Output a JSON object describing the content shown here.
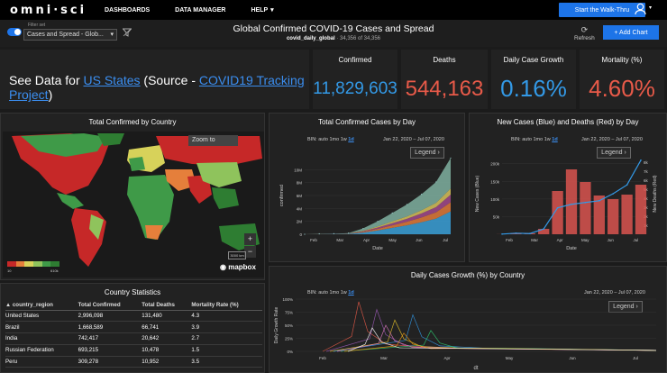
{
  "topbar": {
    "logo": "omni·sci",
    "nav": [
      {
        "label": "DASHBOARDS"
      },
      {
        "label": "DATA MANAGER"
      },
      {
        "label": "HELP"
      }
    ],
    "help_caret": "▾",
    "walkthru": "Start the Walk-Thru",
    "user_icon": "user-icon"
  },
  "subbar": {
    "filter_label": "Filter set",
    "filter_value": "Cases and Spread - Glob...",
    "title": "Global Confirmed COVID-19 Cases and Spread",
    "table_name": "covid_daily_global",
    "row_count": "· 34,356 of 34,356",
    "refresh": "Refresh",
    "add_chart": "+ Add Chart"
  },
  "seedata": {
    "prefix": "See Data for ",
    "link1": "US States",
    "middle": " (Source - ",
    "link2": "COVID19 Tracking Project",
    "suffix": ")"
  },
  "kpis": [
    {
      "label": "Confirmed",
      "value": "11,829,603",
      "color": "#3399e6"
    },
    {
      "label": "Deaths",
      "value": "544,163",
      "color": "#e85a49"
    },
    {
      "label": "Daily Case Growth",
      "value": "0.16%",
      "color": "#3399e6"
    },
    {
      "label": "Mortality (%)",
      "value": "4.60%",
      "color": "#e85a49"
    }
  ],
  "map_panel": {
    "title": "Total Confirmed by Country",
    "zoom_to": "Zoom to",
    "scale": "3000 km",
    "attribution": "mapbox",
    "legend_low": "10",
    "legend_high": "610k",
    "legend_colors": [
      "#c62828",
      "#e57f3b",
      "#d7d25a",
      "#8fc35c",
      "#3f9a48",
      "#2e7d32"
    ]
  },
  "stats_panel": {
    "title": "Country Statistics",
    "columns": [
      "country_region",
      "Total Confirmed",
      "Total Deaths",
      "Mortality Rate (%)"
    ],
    "rows": [
      [
        "United States",
        "2,996,098",
        "131,480",
        "4.3"
      ],
      [
        "Brazil",
        "1,668,589",
        "66,741",
        "3.9"
      ],
      [
        "India",
        "742,417",
        "20,642",
        "2.7"
      ],
      [
        "Russian Federation",
        "693,215",
        "10,478",
        "1.5"
      ],
      [
        "Peru",
        "309,278",
        "10,952",
        "3.5"
      ]
    ]
  },
  "bin_controls": {
    "label": "BIN:",
    "options": [
      "auto",
      "1mo",
      "1w",
      "1d"
    ],
    "active": "1d",
    "date_range": "Jan 22, 2020  –  Jul 07, 2020",
    "legend": "Legend ›"
  },
  "chart_data": [
    {
      "type": "area",
      "title": "Total Confirmed Cases by Day",
      "xlabel": "Date",
      "ylabel": "confirmed",
      "x_ticks": [
        "Feb",
        "Mar",
        "Apr",
        "May",
        "Jun",
        "Jul"
      ],
      "y_ticks": [
        "0",
        "2M",
        "4M",
        "6M",
        "8M",
        "10M"
      ],
      "ylim": [
        0,
        12000000
      ],
      "x": [
        "Jan 22",
        "Feb 15",
        "Mar 1",
        "Mar 15",
        "Apr 1",
        "Apr 15",
        "May 1",
        "May 15",
        "Jun 1",
        "Jun 15",
        "Jul 7"
      ],
      "values": [
        0,
        70000,
        90000,
        170000,
        900000,
        2000000,
        3300000,
        4600000,
        6200000,
        8100000,
        11800000
      ],
      "stack_colors": [
        "#3aa0d8",
        "#e07a3a",
        "#a24a8c",
        "#d8c25a",
        "#7fb0a0"
      ]
    },
    {
      "type": "bar",
      "title": "New Cases (Blue) and Deaths (Red) by Day",
      "xlabel": "Date",
      "ylabel": "New Cases (Blue)",
      "y2label": "New Deaths (Red)",
      "x_ticks": [
        "Feb",
        "Mar",
        "Apr",
        "May",
        "Jun",
        "Jul"
      ],
      "y_ticks": [
        "50k",
        "100k",
        "150k",
        "200k"
      ],
      "y2_ticks": [
        "1k",
        "2k",
        "3k",
        "4k",
        "5k",
        "6k",
        "7k",
        "8k"
      ],
      "ylim": [
        0,
        230000
      ],
      "y2lim": [
        0,
        9000
      ],
      "x": [
        "Jan 22",
        "Feb 15",
        "Mar 1",
        "Mar 15",
        "Apr 1",
        "Apr 15",
        "May 1",
        "May 15",
        "Jun 1",
        "Jun 15",
        "Jul 7"
      ],
      "series": [
        {
          "name": "New Cases (Blue)",
          "color": "#3399e6",
          "values": [
            500,
            3000,
            2000,
            15000,
            75000,
            85000,
            90000,
            95000,
            115000,
            140000,
            210000
          ]
        },
        {
          "name": "New Deaths (Red)",
          "color": "#d9534f",
          "values": [
            10,
            100,
            100,
            600,
            4800,
            7200,
            5800,
            4300,
            3900,
            4400,
            5500
          ]
        }
      ]
    },
    {
      "type": "line",
      "title": "Daily Cases Growth (%) by Country",
      "xlabel": "dt",
      "ylabel": "Daily Growth Rate",
      "x_ticks": [
        "Feb",
        "Mar",
        "Apr",
        "May",
        "Jun",
        "Jul"
      ],
      "y_ticks": [
        "0%",
        "25%",
        "50%",
        "75%",
        "100%"
      ],
      "ylim": [
        0,
        100
      ]
    }
  ]
}
